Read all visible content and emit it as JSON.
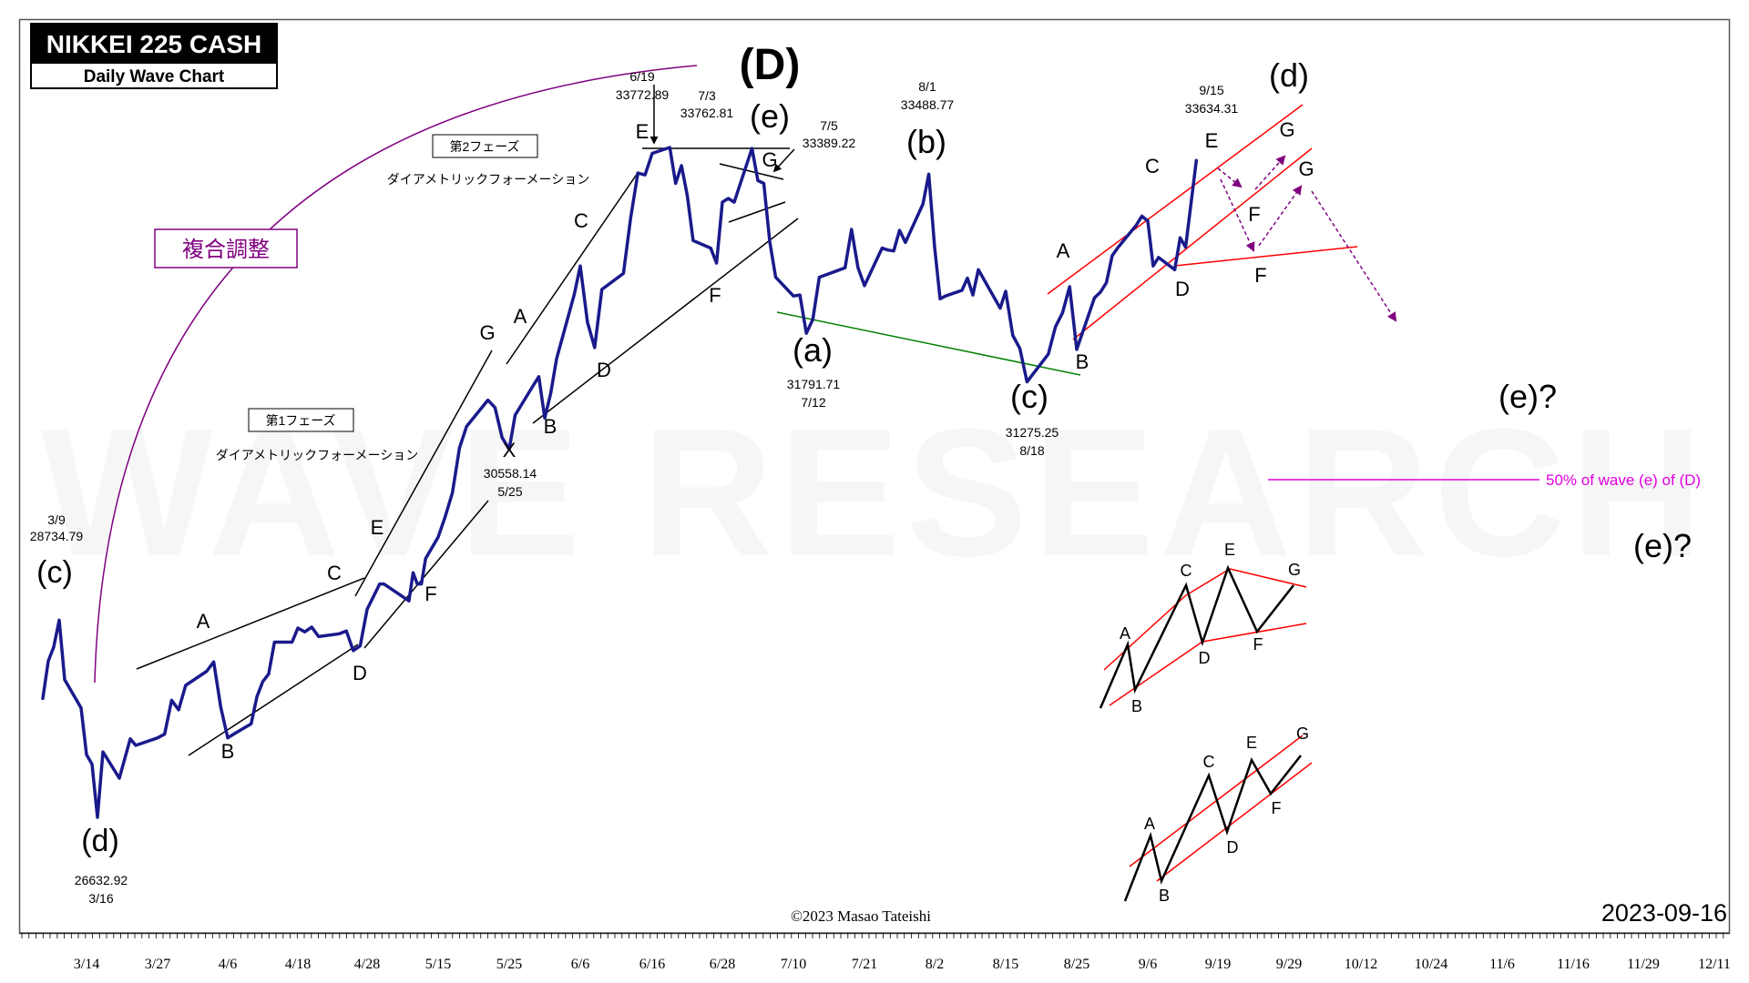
{
  "header": {
    "title": "NIKKEI 225 CASH",
    "subtitle": "Daily Wave Chart"
  },
  "watermark": "WAVE RESEARCH",
  "copyright": "©2023 Masao Tateishi",
  "date_stamp": "2023-09-16",
  "box_label": "複合調整",
  "phase_labels": [
    {
      "tag": "第1フェーズ",
      "desc": "ダイアメトリックフォーメーション"
    },
    {
      "tag": "第2フェーズ",
      "desc": "ダイアメトリックフォーメーション"
    }
  ],
  "annotation_50pct": "50% of wave (e) of (D)",
  "price_notes": [
    {
      "date": "3/9",
      "price": "28734.79"
    },
    {
      "date": "3/16",
      "price": "26632.92"
    },
    {
      "date": "5/25",
      "price": "30558.14"
    },
    {
      "date": "6/19",
      "price": "33772.89"
    },
    {
      "date": "7/3",
      "price": "33762.81"
    },
    {
      "date": "7/5",
      "price": "33389.22"
    },
    {
      "date": "7/12",
      "price": "31791.71"
    },
    {
      "date": "8/1",
      "price": "33488.77"
    },
    {
      "date": "8/18",
      "price": "31275.25"
    },
    {
      "date": "9/15",
      "price": "33634.31"
    }
  ],
  "wave_labels": [
    "(c)",
    "(d)",
    "A",
    "B",
    "C",
    "D",
    "E",
    "F",
    "G",
    "X",
    "A",
    "B",
    "C",
    "D",
    "E",
    "F",
    "G",
    "(D)",
    "(e)",
    "(a)",
    "(b)",
    "(c)",
    "A",
    "B",
    "C",
    "D",
    "E",
    "F",
    "G",
    "F",
    "G",
    "(d)",
    "(e)?",
    "(e)?"
  ],
  "pattern_labels": [
    "A",
    "B",
    "C",
    "D",
    "E",
    "F",
    "G",
    "A",
    "B",
    "C",
    "D",
    "E",
    "F",
    "G"
  ],
  "colors": {
    "price_line": "#1a1a8c",
    "trend_line": "#000000",
    "support_line": "#008000",
    "channel_line": "#ff0000",
    "projection_arrow": "#800080",
    "fifty_pct_line": "#e100e1",
    "box_border": "#800080"
  },
  "chart_data": {
    "type": "line",
    "title": "NIKKEI 225 CASH",
    "xlabel": "",
    "ylabel": "",
    "x_ticks": [
      "3/14",
      "3/27",
      "4/6",
      "4/18",
      "4/28",
      "5/15",
      "5/25",
      "6/6",
      "6/16",
      "6/28",
      "7/10",
      "7/21",
      "8/2",
      "8/15",
      "8/25",
      "9/6",
      "9/19",
      "9/29",
      "10/12",
      "10/24",
      "11/6",
      "11/16",
      "11/29",
      "12/11"
    ],
    "ylim": [
      26000,
      34600
    ],
    "grid": false,
    "series": [
      {
        "name": "",
        "points": [
          [
            "3/6",
            27900
          ],
          [
            "3/7",
            28300
          ],
          [
            "3/8",
            28450
          ],
          [
            "3/9",
            28734.79
          ],
          [
            "3/10",
            28100
          ],
          [
            "3/13",
            27800
          ],
          [
            "3/14",
            27300
          ],
          [
            "3/15",
            27200
          ],
          [
            "3/16",
            26632.92
          ],
          [
            "3/17",
            27330
          ],
          [
            "3/20",
            27050
          ],
          [
            "3/22",
            27470
          ],
          [
            "3/23",
            27400
          ],
          [
            "3/24",
            27420
          ],
          [
            "3/27",
            27480
          ],
          [
            "3/28",
            27520
          ],
          [
            "3/29",
            27880
          ],
          [
            "3/30",
            27780
          ],
          [
            "3/31",
            28040
          ],
          [
            "4/3",
            28190
          ],
          [
            "4/4",
            28290
          ],
          [
            "4/5",
            27810
          ],
          [
            "4/6",
            27480
          ],
          [
            "4/7",
            27520
          ],
          [
            "4/10",
            27630
          ],
          [
            "4/11",
            27920
          ],
          [
            "4/12",
            28080
          ],
          [
            "4/13",
            28160
          ],
          [
            "4/14",
            28500
          ],
          [
            "4/17",
            28500
          ],
          [
            "4/18",
            28650
          ],
          [
            "4/19",
            28610
          ],
          [
            "4/20",
            28660
          ],
          [
            "4/21",
            28560
          ],
          [
            "4/24",
            28590
          ],
          [
            "4/25",
            28620
          ],
          [
            "4/26",
            28410
          ],
          [
            "4/27",
            28460
          ],
          [
            "4/28",
            28850
          ],
          [
            "5/1",
            29120
          ],
          [
            "5/2",
            29120
          ],
          [
            "5/8",
            28940
          ],
          [
            "5/9",
            29240
          ],
          [
            "5/10",
            29120
          ],
          [
            "5/11",
            29120
          ],
          [
            "5/12",
            29390
          ],
          [
            "5/15",
            29620
          ],
          [
            "5/16",
            29840
          ],
          [
            "5/17",
            30090
          ],
          [
            "5/18",
            30570
          ],
          [
            "5/19",
            30800
          ],
          [
            "5/22",
            31080
          ],
          [
            "5/23",
            31000
          ],
          [
            "5/24",
            30680
          ],
          [
            "5/25",
            30558.14
          ],
          [
            "5/26",
            30920
          ],
          [
            "5/29",
            31230
          ],
          [
            "5/30",
            31330
          ],
          [
            "5/31",
            30890
          ],
          [
            "6/1",
            31150
          ],
          [
            "6/2",
            31520
          ],
          [
            "6/5",
            32210
          ],
          [
            "6/6",
            32510
          ],
          [
            "6/7",
            31910
          ],
          [
            "6/8",
            31640
          ],
          [
            "6/9",
            32260
          ],
          [
            "6/12",
            32430
          ],
          [
            "6/13",
            33020
          ],
          [
            "6/14",
            33500
          ],
          [
            "6/15",
            33480
          ],
          [
            "6/16",
            33710
          ],
          [
            "6/19",
            33772.89
          ],
          [
            "6/20",
            33390
          ],
          [
            "6/21",
            33580
          ],
          [
            "6/22",
            33260
          ],
          [
            "6/23",
            32780
          ],
          [
            "6/26",
            32700
          ],
          [
            "6/27",
            32540
          ],
          [
            "6/28",
            33190
          ],
          [
            "6/29",
            33230
          ],
          [
            "6/30",
            33190
          ],
          [
            "7/3",
            33762.81
          ],
          [
            "7/4",
            33420
          ],
          [
            "7/5",
            33389.22
          ],
          [
            "7/6",
            32770
          ],
          [
            "7/7",
            32390
          ],
          [
            "7/10",
            32190
          ],
          [
            "7/11",
            32200
          ],
          [
            "7/12",
            31791.71
          ],
          [
            "7/13",
            31940
          ],
          [
            "7/14",
            32390
          ],
          [
            "7/18",
            32490
          ],
          [
            "7/19",
            32900
          ],
          [
            "7/20",
            32490
          ],
          [
            "7/21",
            32300
          ],
          [
            "7/24",
            32700
          ],
          [
            "7/25",
            32680
          ],
          [
            "7/26",
            32670
          ],
          [
            "7/27",
            32890
          ],
          [
            "7/28",
            32760
          ],
          [
            "7/31",
            33170
          ],
          [
            "8/1",
            33488.77
          ],
          [
            "8/2",
            32710
          ],
          [
            "8/3",
            32160
          ],
          [
            "8/4",
            32190
          ],
          [
            "8/7",
            32250
          ],
          [
            "8/8",
            32380
          ],
          [
            "8/9",
            32200
          ],
          [
            "8/10",
            32470
          ],
          [
            "8/14",
            32060
          ],
          [
            "8/15",
            32240
          ],
          [
            "8/16",
            31770
          ],
          [
            "8/17",
            31630
          ],
          [
            "8/18",
            31275.25
          ],
          [
            "8/21",
            31570
          ],
          [
            "8/22",
            31860
          ],
          [
            "8/23",
            32010
          ],
          [
            "8/24",
            32290
          ],
          [
            "8/25",
            31620
          ],
          [
            "8/28",
            32170
          ],
          [
            "8/29",
            32230
          ],
          [
            "8/30",
            32330
          ],
          [
            "8/31",
            32620
          ],
          [
            "9/1",
            32710
          ],
          [
            "9/4",
            32940
          ],
          [
            "9/5",
            33040
          ],
          [
            "9/6",
            32990
          ],
          [
            "9/7",
            32510
          ],
          [
            "9/8",
            32600
          ],
          [
            "9/11",
            32470
          ],
          [
            "9/12",
            32810
          ],
          [
            "9/13",
            32710
          ],
          [
            "9/14",
            33170
          ],
          [
            "9/15",
            33634.31
          ]
        ]
      }
    ]
  }
}
